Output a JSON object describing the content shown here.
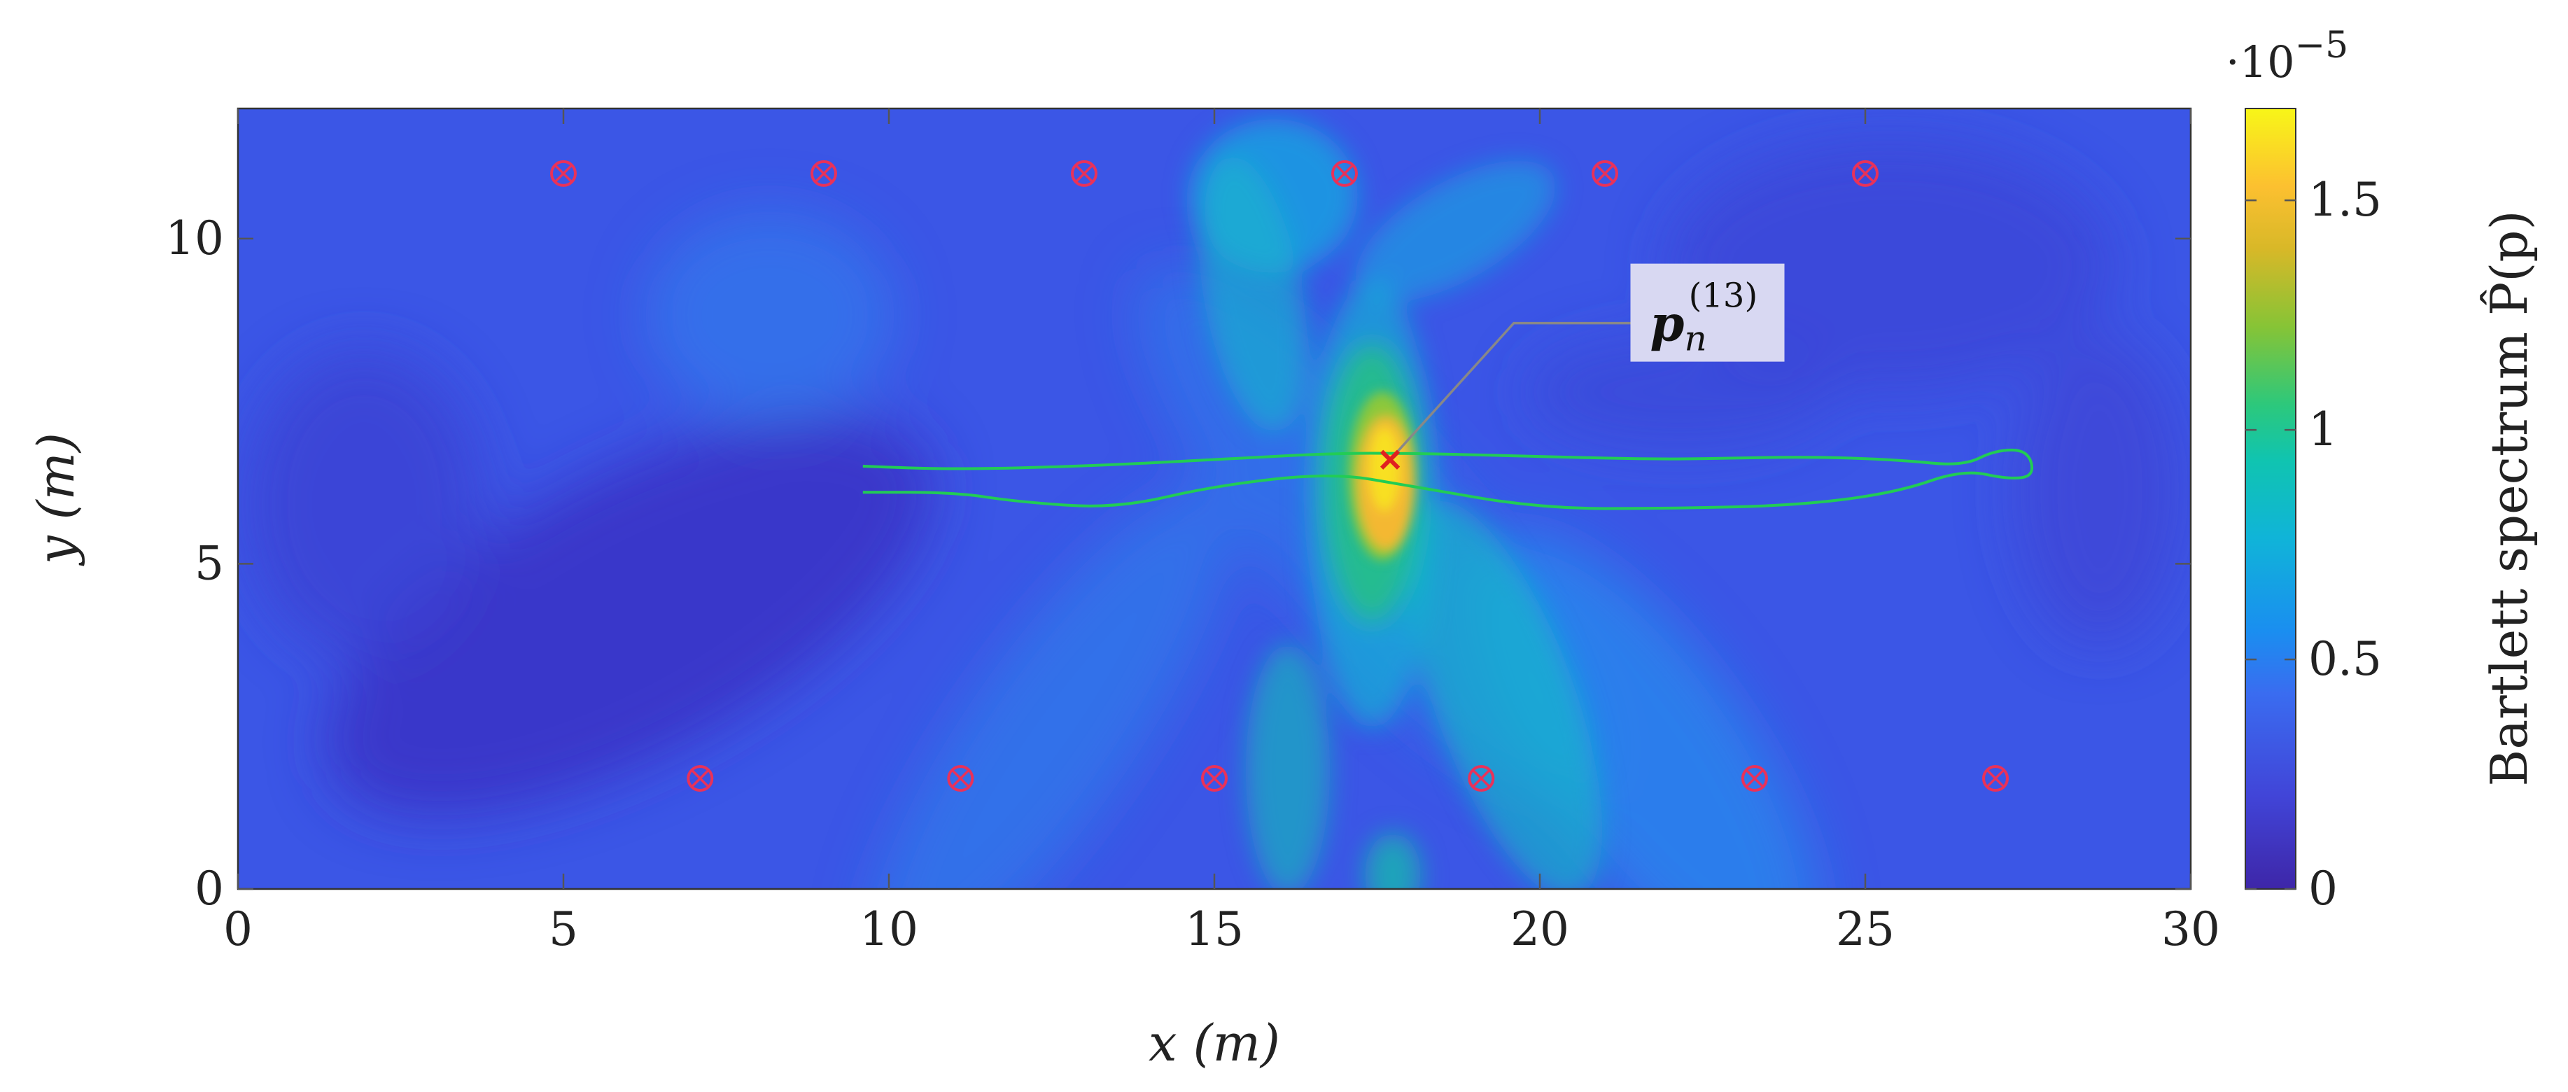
{
  "chart_data": {
    "type": "heatmap",
    "title": "",
    "xlabel": "x (m)",
    "ylabel": "y (m)",
    "xlim": [
      0,
      30
    ],
    "ylim": [
      0,
      12
    ],
    "xticks": [
      0,
      5,
      10,
      15,
      20,
      25,
      30
    ],
    "yticks": [
      0,
      5,
      10
    ],
    "colorbar": {
      "label": "Bartlett spectrum P̂(p)",
      "range": [
        0,
        1.7
      ],
      "ticks": [
        0,
        0.5,
        1,
        1.5
      ],
      "multiplier": "·10",
      "multiplier_exponent": "−5",
      "colormap": "parula"
    },
    "peak": {
      "x": 17.7,
      "y": 6.6,
      "value": 1.65
    },
    "anchors_top": [
      [
        5,
        11
      ],
      [
        9,
        11
      ],
      [
        13,
        11
      ],
      [
        17,
        11
      ],
      [
        21,
        11
      ],
      [
        25,
        11
      ]
    ],
    "anchors_bottom": [
      [
        7.1,
        1.7
      ],
      [
        11.1,
        1.7
      ],
      [
        15.0,
        1.7
      ],
      [
        19.1,
        1.7
      ],
      [
        23.3,
        1.7
      ],
      [
        27.0,
        1.7
      ]
    ],
    "trajectory": [
      [
        9.6,
        6.5
      ],
      [
        11,
        6.45
      ],
      [
        13,
        6.5
      ],
      [
        15,
        6.6
      ],
      [
        16.8,
        6.7
      ],
      [
        18,
        6.7
      ],
      [
        20,
        6.65
      ],
      [
        22,
        6.6
      ],
      [
        24,
        6.65
      ],
      [
        25.5,
        6.6
      ],
      [
        26.5,
        6.5
      ],
      [
        27,
        6.75
      ],
      [
        27.5,
        6.75
      ],
      [
        27.6,
        6.35
      ],
      [
        27.2,
        6.3
      ],
      [
        26.5,
        6.45
      ],
      [
        25.5,
        6.1
      ],
      [
        24,
        5.9
      ],
      [
        22,
        5.85
      ],
      [
        20,
        5.85
      ],
      [
        18,
        6.2
      ],
      [
        16.8,
        6.4
      ],
      [
        15,
        6.2
      ],
      [
        13.5,
        5.85
      ],
      [
        12,
        5.95
      ],
      [
        11,
        6.1
      ],
      [
        9.6,
        6.1
      ]
    ],
    "annotation": {
      "symbol": "p",
      "subscript": "n",
      "superscript": "(13)",
      "point": [
        17.7,
        6.6
      ],
      "label_position": [
        21.5,
        8.7
      ]
    }
  },
  "colors": {
    "anchor": "#e8325a",
    "trajectory": "#22cc55",
    "peak_marker": "#e02020",
    "annotation_box": "#d8d8f2",
    "leader_line": "#888888"
  }
}
